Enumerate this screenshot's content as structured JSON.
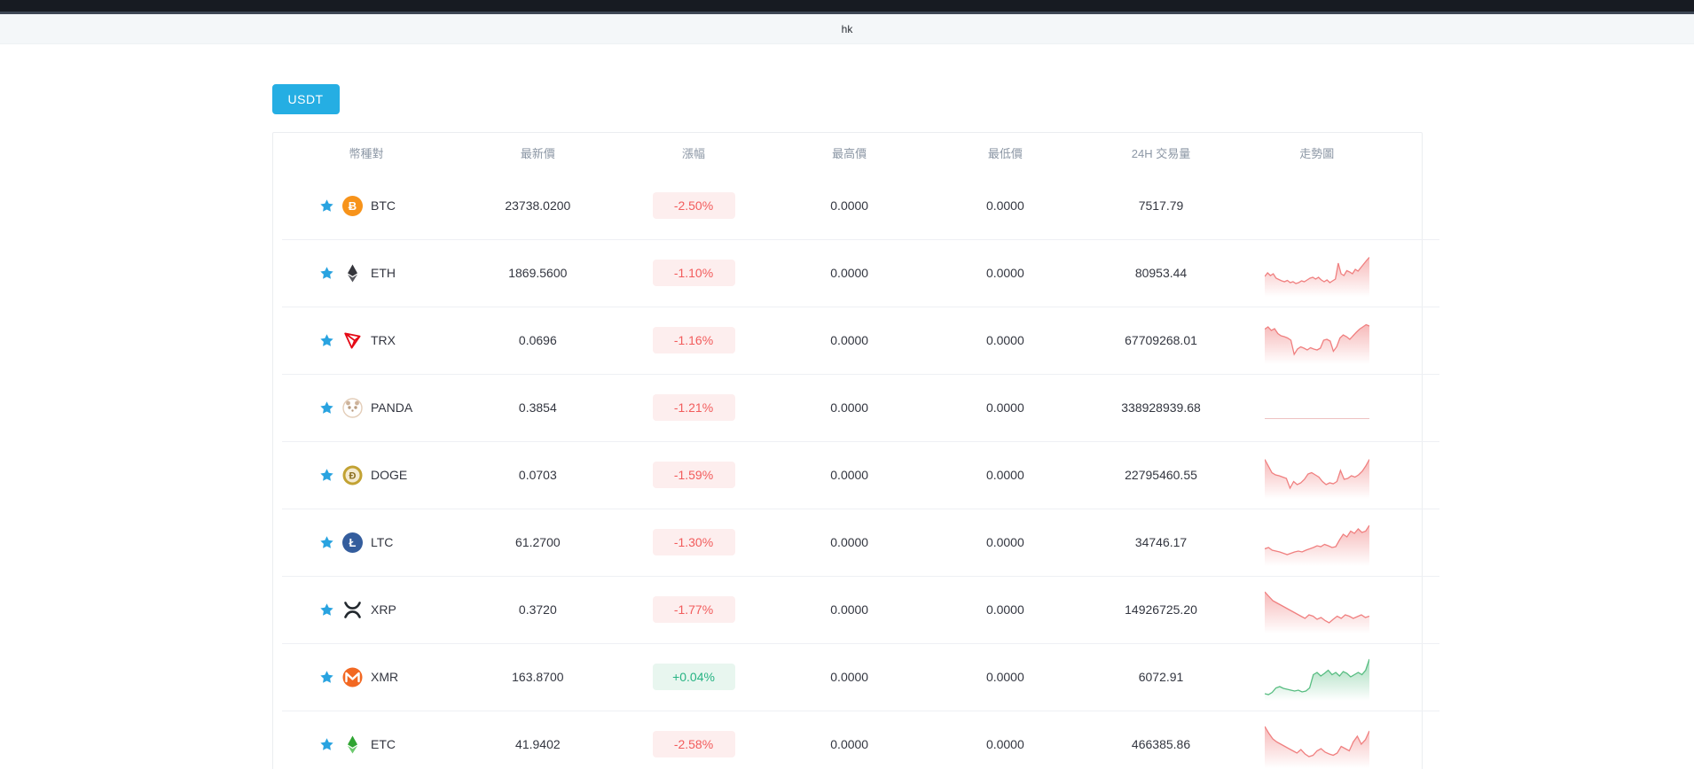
{
  "topbar": {},
  "header": {
    "language_label": "hk"
  },
  "filters": {
    "usdt_tab_label": "USDT"
  },
  "colors": {
    "accent": "#25aee3",
    "favorite_star": "#29a3e0",
    "change_down_text": "#f25c5c",
    "change_down_bg": "#fdeeee",
    "change_up_text": "#27b383",
    "change_up_bg": "#e8f6ef",
    "spark_down": "#f08080",
    "spark_up": "#57bd81",
    "spark_flat": "#eec2c2"
  },
  "market_table": {
    "columns": [
      "幣種對",
      "最新價",
      "漲幅",
      "最高價",
      "最低價",
      "24H 交易量",
      "走勢圖"
    ],
    "rows": [
      {
        "symbol": "BTC",
        "icon": "btc-icon",
        "price": "23738.0200",
        "change": "-2.50%",
        "change_dir": "down",
        "high": "0.0000",
        "low": "0.0000",
        "volume": "7517.79",
        "spark": null
      },
      {
        "symbol": "ETH",
        "icon": "eth-icon",
        "price": "1869.5600",
        "change": "-1.10%",
        "change_dir": "down",
        "high": "0.0000",
        "low": "0.0000",
        "volume": "80953.44",
        "spark": {
          "trend": "down",
          "points": [
            42,
            50,
            44,
            48,
            38,
            35,
            32,
            30,
            33,
            28,
            30,
            26,
            28,
            32,
            30,
            34,
            38,
            40,
            36,
            40,
            34,
            30,
            34,
            28,
            32,
            36,
            72,
            48,
            44,
            55,
            52,
            48,
            58,
            54,
            62,
            70,
            78,
            85
          ]
        }
      },
      {
        "symbol": "TRX",
        "icon": "trx-icon",
        "price": "0.0696",
        "change": "-1.16%",
        "change_dir": "down",
        "high": "0.0000",
        "low": "0.0000",
        "volume": "67709268.01",
        "spark": {
          "trend": "down",
          "points": [
            75,
            80,
            72,
            76,
            65,
            60,
            58,
            55,
            50,
            18,
            30,
            35,
            32,
            28,
            33,
            30,
            28,
            32,
            50,
            52,
            48,
            25,
            35,
            55,
            62,
            58,
            52,
            60,
            68,
            75,
            80,
            85,
            82
          ]
        }
      },
      {
        "symbol": "PANDA",
        "icon": "panda-icon",
        "price": "0.3854",
        "change": "-1.21%",
        "change_dir": "down",
        "high": "0.0000",
        "low": "0.0000",
        "volume": "338928939.68",
        "spark": {
          "trend": "flat",
          "points": [
            25,
            25,
            25,
            25,
            25,
            25,
            25,
            25,
            25,
            25,
            25,
            25
          ]
        }
      },
      {
        "symbol": "DOGE",
        "icon": "doge-icon",
        "price": "0.0703",
        "change": "-1.59%",
        "change_dir": "down",
        "high": "0.0000",
        "low": "0.0000",
        "volume": "22795460.55",
        "spark": {
          "trend": "down",
          "points": [
            85,
            70,
            55,
            50,
            48,
            45,
            42,
            20,
            35,
            28,
            32,
            40,
            52,
            55,
            50,
            45,
            35,
            28,
            32,
            30,
            35,
            60,
            40,
            42,
            48,
            45,
            50,
            58,
            70,
            85
          ]
        }
      },
      {
        "symbol": "LTC",
        "icon": "ltc-icon",
        "price": "61.2700",
        "change": "-1.30%",
        "change_dir": "down",
        "high": "0.0000",
        "low": "0.0000",
        "volume": "34746.17",
        "spark": {
          "trend": "down",
          "points": [
            35,
            38,
            32,
            30,
            28,
            25,
            22,
            25,
            28,
            30,
            28,
            32,
            35,
            38,
            42,
            40,
            45,
            42,
            38,
            40,
            55,
            68,
            62,
            75,
            70,
            80,
            72,
            75,
            88
          ]
        }
      },
      {
        "symbol": "XRP",
        "icon": "xrp-icon",
        "price": "0.3720",
        "change": "-1.77%",
        "change_dir": "down",
        "high": "0.0000",
        "low": "0.0000",
        "volume": "14926725.20",
        "spark": {
          "trend": "down",
          "points": [
            90,
            80,
            70,
            65,
            60,
            55,
            50,
            45,
            40,
            35,
            30,
            38,
            35,
            28,
            32,
            25,
            20,
            28,
            35,
            30,
            38,
            35,
            30,
            34,
            38,
            32,
            35
          ]
        }
      },
      {
        "symbol": "XMR",
        "icon": "xmr-icon",
        "price": "163.8700",
        "change": "+0.04%",
        "change_dir": "up",
        "high": "0.0000",
        "low": "0.0000",
        "volume": "6072.91",
        "spark": {
          "trend": "up",
          "points": [
            12,
            10,
            15,
            25,
            28,
            24,
            22,
            20,
            18,
            20,
            16,
            18,
            25,
            55,
            60,
            52,
            58,
            65,
            55,
            60,
            52,
            62,
            58,
            50,
            55,
            60,
            55,
            65,
            90
          ]
        }
      },
      {
        "symbol": "ETC",
        "icon": "etc-icon",
        "price": "41.9402",
        "change": "-2.58%",
        "change_dir": "down",
        "high": "0.0000",
        "low": "0.0000",
        "volume": "466385.86",
        "spark": {
          "trend": "down",
          "points": [
            90,
            75,
            62,
            55,
            50,
            45,
            40,
            35,
            30,
            38,
            28,
            22,
            25,
            35,
            40,
            32,
            28,
            25,
            30,
            45,
            40,
            35,
            55,
            68,
            50,
            60,
            80
          ]
        }
      }
    ]
  }
}
